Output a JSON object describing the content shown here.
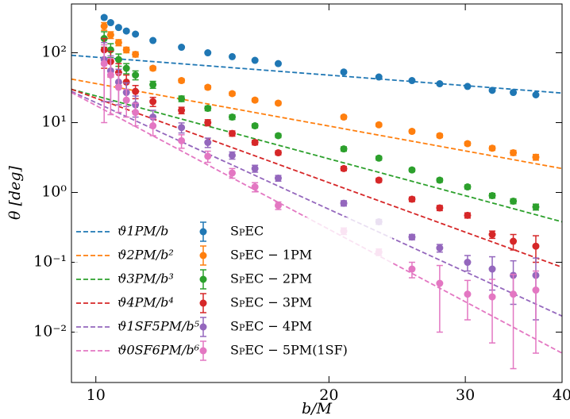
{
  "chart_data": {
    "type": "scatter",
    "xlabel": "b/M",
    "ylabel": "θ [deg]",
    "xscale": "log",
    "yscale": "log",
    "xlim": [
      9.3,
      40
    ],
    "ylim": [
      0.0019,
      500
    ],
    "xticks": [
      10,
      20,
      30,
      40
    ],
    "yticks": [
      {
        "value": 0.01,
        "label": "10⁻²"
      },
      {
        "value": 0.1,
        "label": "10⁻¹"
      },
      {
        "value": 1,
        "label": "10⁰"
      },
      {
        "value": 10,
        "label": "10¹"
      },
      {
        "value": 100,
        "label": "10²"
      }
    ],
    "legend": "lower left",
    "lines": [
      {
        "name": "ϑ1PM/b",
        "color": "#1f77b4",
        "x": [
          9.3,
          40
        ],
        "values": [
          92,
          26.5
        ]
      },
      {
        "name": "ϑ2PM/b²",
        "color": "#ff7f0e",
        "x": [
          9.3,
          40
        ],
        "values": [
          42,
          2.2
        ]
      },
      {
        "name": "ϑ3PM/b³",
        "color": "#2ca02c",
        "x": [
          9.3,
          40
        ],
        "values": [
          30,
          0.38
        ]
      },
      {
        "name": "ϑ4PM/b⁴",
        "color": "#d62728",
        "x": [
          9.3,
          40
        ],
        "values": [
          30,
          0.085
        ]
      },
      {
        "name": "ϑ1SF5PM/b⁵",
        "color": "#9467bd",
        "x": [
          9.3,
          40
        ],
        "values": [
          28,
          0.017
        ]
      },
      {
        "name": "ϑ0SF6PM/b⁶",
        "color": "#e377c2",
        "x": [
          9.3,
          40
        ],
        "values": [
          27,
          0.005
        ]
      }
    ],
    "x": [
      10.25,
      10.45,
      10.7,
      10.95,
      11.25,
      11.85,
      12.9,
      13.95,
      15.0,
      16.05,
      17.2,
      20.9,
      23.2,
      25.6,
      27.8,
      30.2,
      32.5,
      34.6,
      37.0
    ],
    "series": [
      {
        "name": "SpEC",
        "color": "#1f77b4",
        "values": [
          320,
          270,
          230,
          205,
          185,
          150,
          120,
          100,
          88,
          78,
          70,
          53,
          45,
          40,
          36,
          33,
          29,
          27,
          25
        ],
        "errors": [
          15,
          12,
          10,
          8,
          7,
          5,
          4,
          3,
          3,
          2.5,
          2,
          2,
          1.5,
          1.3,
          1.2,
          1,
          1,
          0.9,
          0.8
        ]
      },
      {
        "name": "SpEC − 1PM",
        "color": "#ff7f0e",
        "values": [
          240,
          180,
          140,
          110,
          95,
          60,
          40,
          32,
          26,
          21,
          19,
          12,
          9.3,
          7.5,
          6.5,
          5.0,
          4.3,
          3.7,
          3.2
        ],
        "errors": [
          30,
          20,
          14,
          10,
          8,
          4,
          2.5,
          2,
          1.5,
          1.2,
          1,
          0.7,
          0.5,
          0.4,
          0.4,
          0.3,
          0.3,
          0.3,
          0.3
        ]
      },
      {
        "name": "SpEC − 2PM",
        "color": "#2ca02c",
        "values": [
          160,
          110,
          80,
          60,
          48,
          35,
          22,
          16,
          12,
          9,
          6.5,
          4.2,
          3.1,
          2.1,
          1.5,
          1.2,
          0.9,
          0.75,
          0.62
        ],
        "errors": [
          40,
          25,
          16,
          10,
          7,
          4,
          2,
          1.2,
          0.9,
          0.6,
          0.4,
          0.3,
          0.2,
          0.12,
          0.1,
          0.08,
          0.07,
          0.06,
          0.06
        ]
      },
      {
        "name": "SpEC − 3PM",
        "color": "#d62728",
        "values": [
          110,
          75,
          52,
          38,
          28,
          20,
          15,
          10,
          7,
          5.2,
          3.7,
          2.2,
          1.5,
          0.8,
          0.6,
          0.47,
          0.25,
          0.2,
          0.17
        ],
        "errors": [
          50,
          30,
          18,
          10,
          6,
          3,
          1.6,
          1,
          0.6,
          0.4,
          0.25,
          0.15,
          0.1,
          0.06,
          0.05,
          0.04,
          0.03,
          0.05,
          0.07
        ]
      },
      {
        "name": "SpEC − 4PM",
        "color": "#9467bd",
        "values": [
          80,
          55,
          38,
          27,
          18,
          12,
          8.5,
          5.2,
          3.4,
          2.2,
          1.6,
          0.7,
          0.38,
          0.23,
          0.16,
          0.1,
          0.08,
          0.065,
          0.065
        ],
        "errors": [
          60,
          35,
          20,
          10,
          6,
          3,
          1.4,
          0.8,
          0.4,
          0.25,
          0.15,
          0.06,
          0.03,
          0.02,
          0.02,
          0.025,
          0.04,
          0.04,
          0.05
        ]
      },
      {
        "name": "SpEC − 5PM(1SF)",
        "color": "#e377c2",
        "values": [
          70,
          48,
          32,
          21,
          14,
          9,
          5.5,
          3.3,
          1.9,
          1.2,
          0.65,
          0.28,
          0.14,
          0.08,
          0.05,
          0.035,
          0.032,
          0.035,
          0.04
        ],
        "errors": [
          60,
          35,
          18,
          9,
          5,
          2.5,
          1.2,
          0.6,
          0.3,
          0.18,
          0.08,
          0.03,
          0.015,
          0.02,
          0.04,
          0.02,
          0.025,
          0.032,
          0.035
        ]
      }
    ]
  }
}
